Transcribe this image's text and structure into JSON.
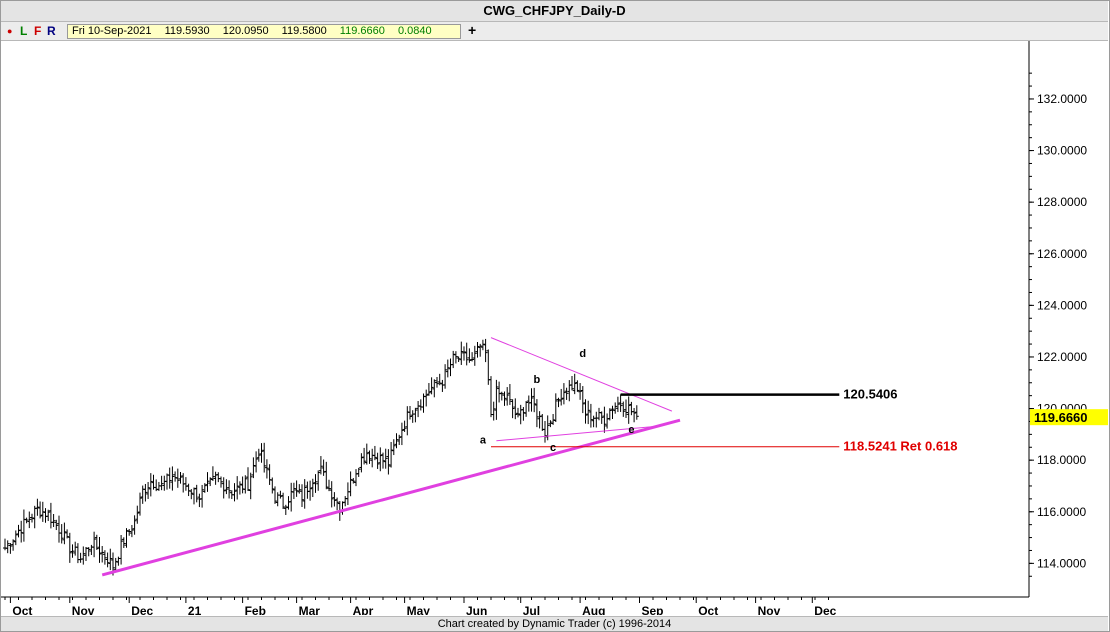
{
  "title": "CWG_CHFJPY_Daily-D",
  "toolbar": {
    "buttons": [
      {
        "label": "●",
        "color": "#cc0000"
      },
      {
        "label": "L",
        "color": "#008000"
      },
      {
        "label": "F",
        "color": "#cc0000"
      },
      {
        "label": "R",
        "color": "#000080"
      }
    ],
    "ohlc": {
      "date": "Fri 10-Sep-2021",
      "open": "119.5930",
      "high": "120.0950",
      "low": "119.5800",
      "close": "119.6660",
      "change": "0.0840"
    },
    "add_label": "+"
  },
  "footer": "Chart created by Dynamic Trader  (c)  1996-2014",
  "chart_data": {
    "type": "candlestick",
    "title": "CWG_CHFJPY_Daily-D",
    "ylim": [
      113.2,
      133.2
    ],
    "y_ticks": [
      "114.0000",
      "116.0000",
      "118.0000",
      "120.0000",
      "122.0000",
      "124.0000",
      "126.0000",
      "128.0000",
      "130.0000",
      "132.0000"
    ],
    "x_ticks": [
      "Oct",
      "Nov",
      "Dec",
      "21",
      "Feb",
      "Mar",
      "Apr",
      "May",
      "Jun",
      "Jul",
      "Aug",
      "Sep",
      "Oct",
      "Nov",
      "Dec"
    ],
    "last_price": "119.6660",
    "path": [
      [
        0,
        114.6
      ],
      [
        6,
        115.4
      ],
      [
        12,
        116.1
      ],
      [
        16,
        115.9
      ],
      [
        21,
        115.2
      ],
      [
        24,
        114.6
      ],
      [
        28,
        114.2
      ],
      [
        32,
        114.8
      ],
      [
        38,
        114.2
      ],
      [
        40,
        113.9
      ],
      [
        44,
        114.9
      ],
      [
        48,
        115.6
      ],
      [
        51,
        116.8
      ],
      [
        54,
        117.2
      ],
      [
        58,
        117.0
      ],
      [
        62,
        117.4
      ],
      [
        66,
        117.1
      ],
      [
        72,
        116.6
      ],
      [
        78,
        117.3
      ],
      [
        84,
        116.8
      ],
      [
        90,
        117.1
      ],
      [
        94,
        118.4
      ],
      [
        97,
        117.5
      ],
      [
        100,
        116.6
      ],
      [
        103,
        116.3
      ],
      [
        107,
        116.8
      ],
      [
        110,
        116.6
      ],
      [
        114,
        117.3
      ],
      [
        117,
        117.6
      ],
      [
        120,
        116.9
      ],
      [
        124,
        116.2
      ],
      [
        128,
        117.1
      ],
      [
        131,
        117.9
      ],
      [
        134,
        118.3
      ],
      [
        138,
        118.1
      ],
      [
        142,
        117.9
      ],
      [
        146,
        119.0
      ],
      [
        150,
        119.9
      ],
      [
        154,
        120.3
      ],
      [
        158,
        120.8
      ],
      [
        162,
        121.1
      ],
      [
        166,
        121.9
      ],
      [
        170,
        122.0
      ],
      [
        173,
        121.8
      ],
      [
        176,
        122.4
      ],
      [
        178,
        122.1
      ],
      [
        180,
        119.8
      ],
      [
        182,
        120.6
      ],
      [
        186,
        120.4
      ],
      [
        190,
        119.6
      ],
      [
        193,
        120.3
      ],
      [
        196,
        120.1
      ],
      [
        200,
        119.1
      ],
      [
        203,
        119.8
      ],
      [
        206,
        120.6
      ],
      [
        210,
        120.9
      ],
      [
        212,
        120.8
      ],
      [
        215,
        119.8
      ],
      [
        218,
        119.7
      ],
      [
        222,
        119.6
      ],
      [
        225,
        120.1
      ],
      [
        228,
        120.2
      ],
      [
        231,
        120.0
      ],
      [
        234,
        119.7
      ]
    ],
    "annotations": [
      {
        "text": "a",
        "x": 177,
        "y": 118.65
      },
      {
        "text": "b",
        "x": 197,
        "y": 121.0
      },
      {
        "text": "c",
        "x": 203,
        "y": 118.35
      },
      {
        "text": "d",
        "x": 214,
        "y": 122.0
      },
      {
        "text": "e",
        "x": 232,
        "y": 119.05
      }
    ],
    "lines": [
      {
        "name": "major-trendline",
        "from": [
          36,
          113.55
        ],
        "to": [
          250,
          119.55
        ],
        "color": "#e040e0"
      },
      {
        "name": "upper-triangle-line",
        "from": [
          180,
          122.75
        ],
        "to": [
          247,
          119.9
        ],
        "color": "#e040e0"
      },
      {
        "name": "lower-triangle-line",
        "from": [
          182,
          118.75
        ],
        "to": [
          240,
          119.3
        ],
        "color": "#e040e0"
      },
      {
        "name": "level-line",
        "from": [
          228,
          120.54
        ],
        "to": [
          309,
          120.54
        ],
        "color": "#000000",
        "label": "120.5406"
      },
      {
        "name": "retracement-line",
        "from": [
          180,
          118.52
        ],
        "to": [
          309,
          118.52
        ],
        "color": "#e00000",
        "label": "118.5241 Ret 0.618"
      }
    ]
  }
}
